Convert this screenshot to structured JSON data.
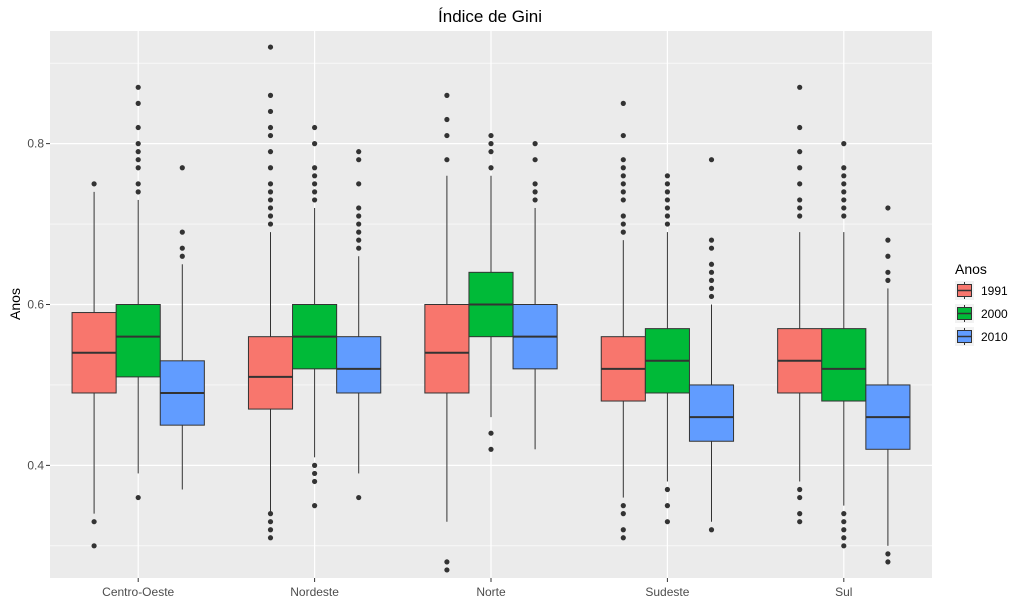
{
  "chart_data": {
    "type": "box",
    "title": "Índice de Gini",
    "xlabel": "",
    "ylabel": "Anos",
    "categories": [
      "Centro-Oeste",
      "Nordeste",
      "Norte",
      "Sudeste",
      "Sul"
    ],
    "ylim": [
      0.26,
      0.94
    ],
    "yticks": [
      0.4,
      0.6,
      0.8
    ],
    "ytick_labels": [
      "0.4",
      "0.6",
      "0.8"
    ],
    "grid": true,
    "legend": {
      "title": "Anos",
      "position": "right"
    },
    "series": [
      {
        "name": "1991",
        "color": "#F8766D",
        "boxes": [
          {
            "min": 0.34,
            "q1": 0.49,
            "median": 0.54,
            "q3": 0.59,
            "max": 0.74,
            "outliers": [
              0.75,
              0.33,
              0.3
            ]
          },
          {
            "min": 0.34,
            "q1": 0.47,
            "median": 0.51,
            "q3": 0.56,
            "max": 0.69,
            "outliers": [
              0.92,
              0.86,
              0.84,
              0.82,
              0.81,
              0.79,
              0.77,
              0.75,
              0.74,
              0.73,
              0.72,
              0.71,
              0.7,
              0.34,
              0.33,
              0.32,
              0.31
            ]
          },
          {
            "min": 0.33,
            "q1": 0.49,
            "median": 0.54,
            "q3": 0.6,
            "max": 0.76,
            "outliers": [
              0.86,
              0.83,
              0.81,
              0.78,
              0.28,
              0.27
            ]
          },
          {
            "min": 0.36,
            "q1": 0.48,
            "median": 0.52,
            "q3": 0.56,
            "max": 0.68,
            "outliers": [
              0.85,
              0.81,
              0.78,
              0.77,
              0.76,
              0.75,
              0.74,
              0.73,
              0.71,
              0.7,
              0.69,
              0.35,
              0.34,
              0.32,
              0.31
            ]
          },
          {
            "min": 0.38,
            "q1": 0.49,
            "median": 0.53,
            "q3": 0.57,
            "max": 0.69,
            "outliers": [
              0.87,
              0.82,
              0.79,
              0.77,
              0.75,
              0.73,
              0.72,
              0.71,
              0.37,
              0.36,
              0.34,
              0.33
            ]
          }
        ]
      },
      {
        "name": "2000",
        "color": "#00BA38",
        "boxes": [
          {
            "min": 0.39,
            "q1": 0.51,
            "median": 0.56,
            "q3": 0.6,
            "max": 0.73,
            "outliers": [
              0.87,
              0.85,
              0.82,
              0.8,
              0.79,
              0.78,
              0.77,
              0.75,
              0.74,
              0.36
            ]
          },
          {
            "min": 0.41,
            "q1": 0.52,
            "median": 0.56,
            "q3": 0.6,
            "max": 0.72,
            "outliers": [
              0.82,
              0.8,
              0.77,
              0.76,
              0.75,
              0.74,
              0.73,
              0.4,
              0.39,
              0.38,
              0.35
            ]
          },
          {
            "min": 0.46,
            "q1": 0.56,
            "median": 0.6,
            "q3": 0.64,
            "max": 0.76,
            "outliers": [
              0.81,
              0.8,
              0.79,
              0.77,
              0.44,
              0.42
            ]
          },
          {
            "min": 0.38,
            "q1": 0.49,
            "median": 0.53,
            "q3": 0.57,
            "max": 0.69,
            "outliers": [
              0.76,
              0.75,
              0.74,
              0.73,
              0.72,
              0.71,
              0.7,
              0.37,
              0.35,
              0.33
            ]
          },
          {
            "min": 0.35,
            "q1": 0.48,
            "median": 0.52,
            "q3": 0.57,
            "max": 0.69,
            "outliers": [
              0.8,
              0.77,
              0.76,
              0.75,
              0.74,
              0.73,
              0.72,
              0.71,
              0.34,
              0.33,
              0.32,
              0.31,
              0.3
            ]
          }
        ]
      },
      {
        "name": "2010",
        "color": "#619CFF",
        "boxes": [
          {
            "min": 0.37,
            "q1": 0.45,
            "median": 0.49,
            "q3": 0.53,
            "max": 0.65,
            "outliers": [
              0.77,
              0.69,
              0.67,
              0.66
            ]
          },
          {
            "min": 0.39,
            "q1": 0.49,
            "median": 0.52,
            "q3": 0.56,
            "max": 0.66,
            "outliers": [
              0.79,
              0.78,
              0.75,
              0.72,
              0.71,
              0.7,
              0.69,
              0.68,
              0.67,
              0.36
            ]
          },
          {
            "min": 0.42,
            "q1": 0.52,
            "median": 0.56,
            "q3": 0.6,
            "max": 0.72,
            "outliers": [
              0.8,
              0.78,
              0.75,
              0.74,
              0.73
            ]
          },
          {
            "min": 0.33,
            "q1": 0.43,
            "median": 0.46,
            "q3": 0.5,
            "max": 0.6,
            "outliers": [
              0.78,
              0.68,
              0.67,
              0.65,
              0.64,
              0.63,
              0.62,
              0.61,
              0.32
            ]
          },
          {
            "min": 0.3,
            "q1": 0.42,
            "median": 0.46,
            "q3": 0.5,
            "max": 0.62,
            "outliers": [
              0.72,
              0.68,
              0.66,
              0.64,
              0.63,
              0.29,
              0.28
            ]
          }
        ]
      }
    ]
  }
}
